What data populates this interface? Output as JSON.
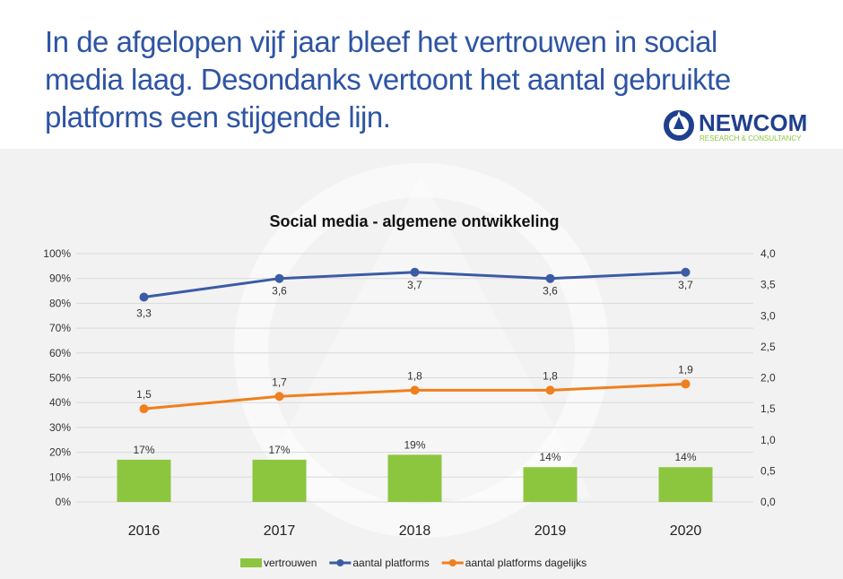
{
  "headline": "In de afgelopen vijf jaar bleef het vertrouwen in social media laag. Desondanks vertoont het aantal gebruikte platforms een stijgende lijn.",
  "logo": {
    "name": "NEWCOM",
    "tagline": "RESEARCH & CONSULTANCY",
    "colors": {
      "blue": "#1f3f8f",
      "green": "#8cc63f"
    }
  },
  "chart_data": {
    "type": "bar+line",
    "title": "Social media - algemene ontwikkeling",
    "categories": [
      "2016",
      "2017",
      "2018",
      "2019",
      "2020"
    ],
    "left_axis": {
      "min": 0,
      "max": 100,
      "ticks": [
        "0%",
        "10%",
        "20%",
        "30%",
        "40%",
        "50%",
        "60%",
        "70%",
        "80%",
        "90%",
        "100%"
      ]
    },
    "right_axis": {
      "min": 0,
      "max": 4.0,
      "ticks": [
        "0,0",
        "0,5",
        "1,0",
        "1,5",
        "2,0",
        "2,5",
        "3,0",
        "3,5",
        "4,0"
      ]
    },
    "grid": true,
    "legend_position": "bottom",
    "series": [
      {
        "name": "vertrouwen",
        "type": "bar",
        "axis": "left",
        "values": [
          17,
          17,
          19,
          14,
          14
        ],
        "labels": [
          "17%",
          "17%",
          "19%",
          "14%",
          "14%"
        ],
        "color": "#8cc63f"
      },
      {
        "name": "aantal platforms",
        "type": "line",
        "axis": "right",
        "values": [
          3.3,
          3.6,
          3.7,
          3.6,
          3.7
        ],
        "labels": [
          "3,3",
          "3,6",
          "3,7",
          "3,6",
          "3,7"
        ],
        "color": "#3b5ba5"
      },
      {
        "name": "aantal platforms dagelijks",
        "type": "line",
        "axis": "right",
        "values": [
          1.5,
          1.7,
          1.8,
          1.8,
          1.9
        ],
        "labels": [
          "1,5",
          "1,7",
          "1,8",
          "1,8",
          "1,9"
        ],
        "color": "#f07f1d"
      }
    ]
  }
}
